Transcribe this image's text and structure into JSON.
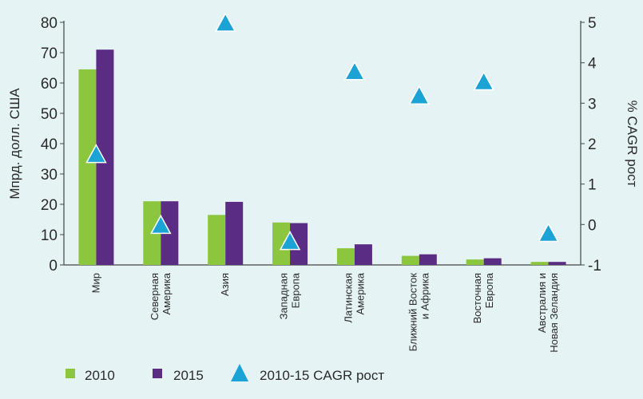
{
  "chart_data": {
    "type": "bar",
    "title": "",
    "ylabel_left": "Мпрд. долл. США",
    "ylabel_right": "% CAGR рост",
    "ylim_left": [
      0,
      80
    ],
    "ylim_right": [
      -1,
      5
    ],
    "yticks_left": [
      0,
      10,
      20,
      30,
      40,
      50,
      60,
      70,
      80
    ],
    "yticks_right": [
      -1,
      0,
      1,
      2,
      3,
      4,
      5
    ],
    "categories": [
      [
        "Мир"
      ],
      [
        "Северная",
        "Америка"
      ],
      [
        "Азия"
      ],
      [
        "Западная",
        "Европа"
      ],
      [
        "Латинская",
        "Америка"
      ],
      [
        "Ближний Восток",
        "и Африка"
      ],
      [
        "Восточная",
        "Европа"
      ],
      [
        "Австралия и",
        "Новая Зеландия"
      ]
    ],
    "series": [
      {
        "name": "2010",
        "type": "bar",
        "axis": "left",
        "color": "#8cc63f",
        "values": [
          64.5,
          21,
          16.5,
          14,
          5.5,
          3,
          1.8,
          1
        ]
      },
      {
        "name": "2015",
        "type": "bar",
        "axis": "left",
        "color": "#5b2c83",
        "values": [
          71,
          21,
          20.8,
          13.8,
          6.8,
          3.5,
          2.2,
          1
        ]
      },
      {
        "name": "2010-15 CAGR рост",
        "type": "marker",
        "axis": "right",
        "color": "#1aa3d4",
        "values": [
          1.75,
          0,
          5,
          -0.4,
          3.8,
          3.2,
          3.55,
          -0.2
        ]
      }
    ],
    "legend": {
      "position": "bottom",
      "items": [
        "2010",
        "2015",
        "2010-15 CAGR рост"
      ]
    },
    "grid": false
  }
}
